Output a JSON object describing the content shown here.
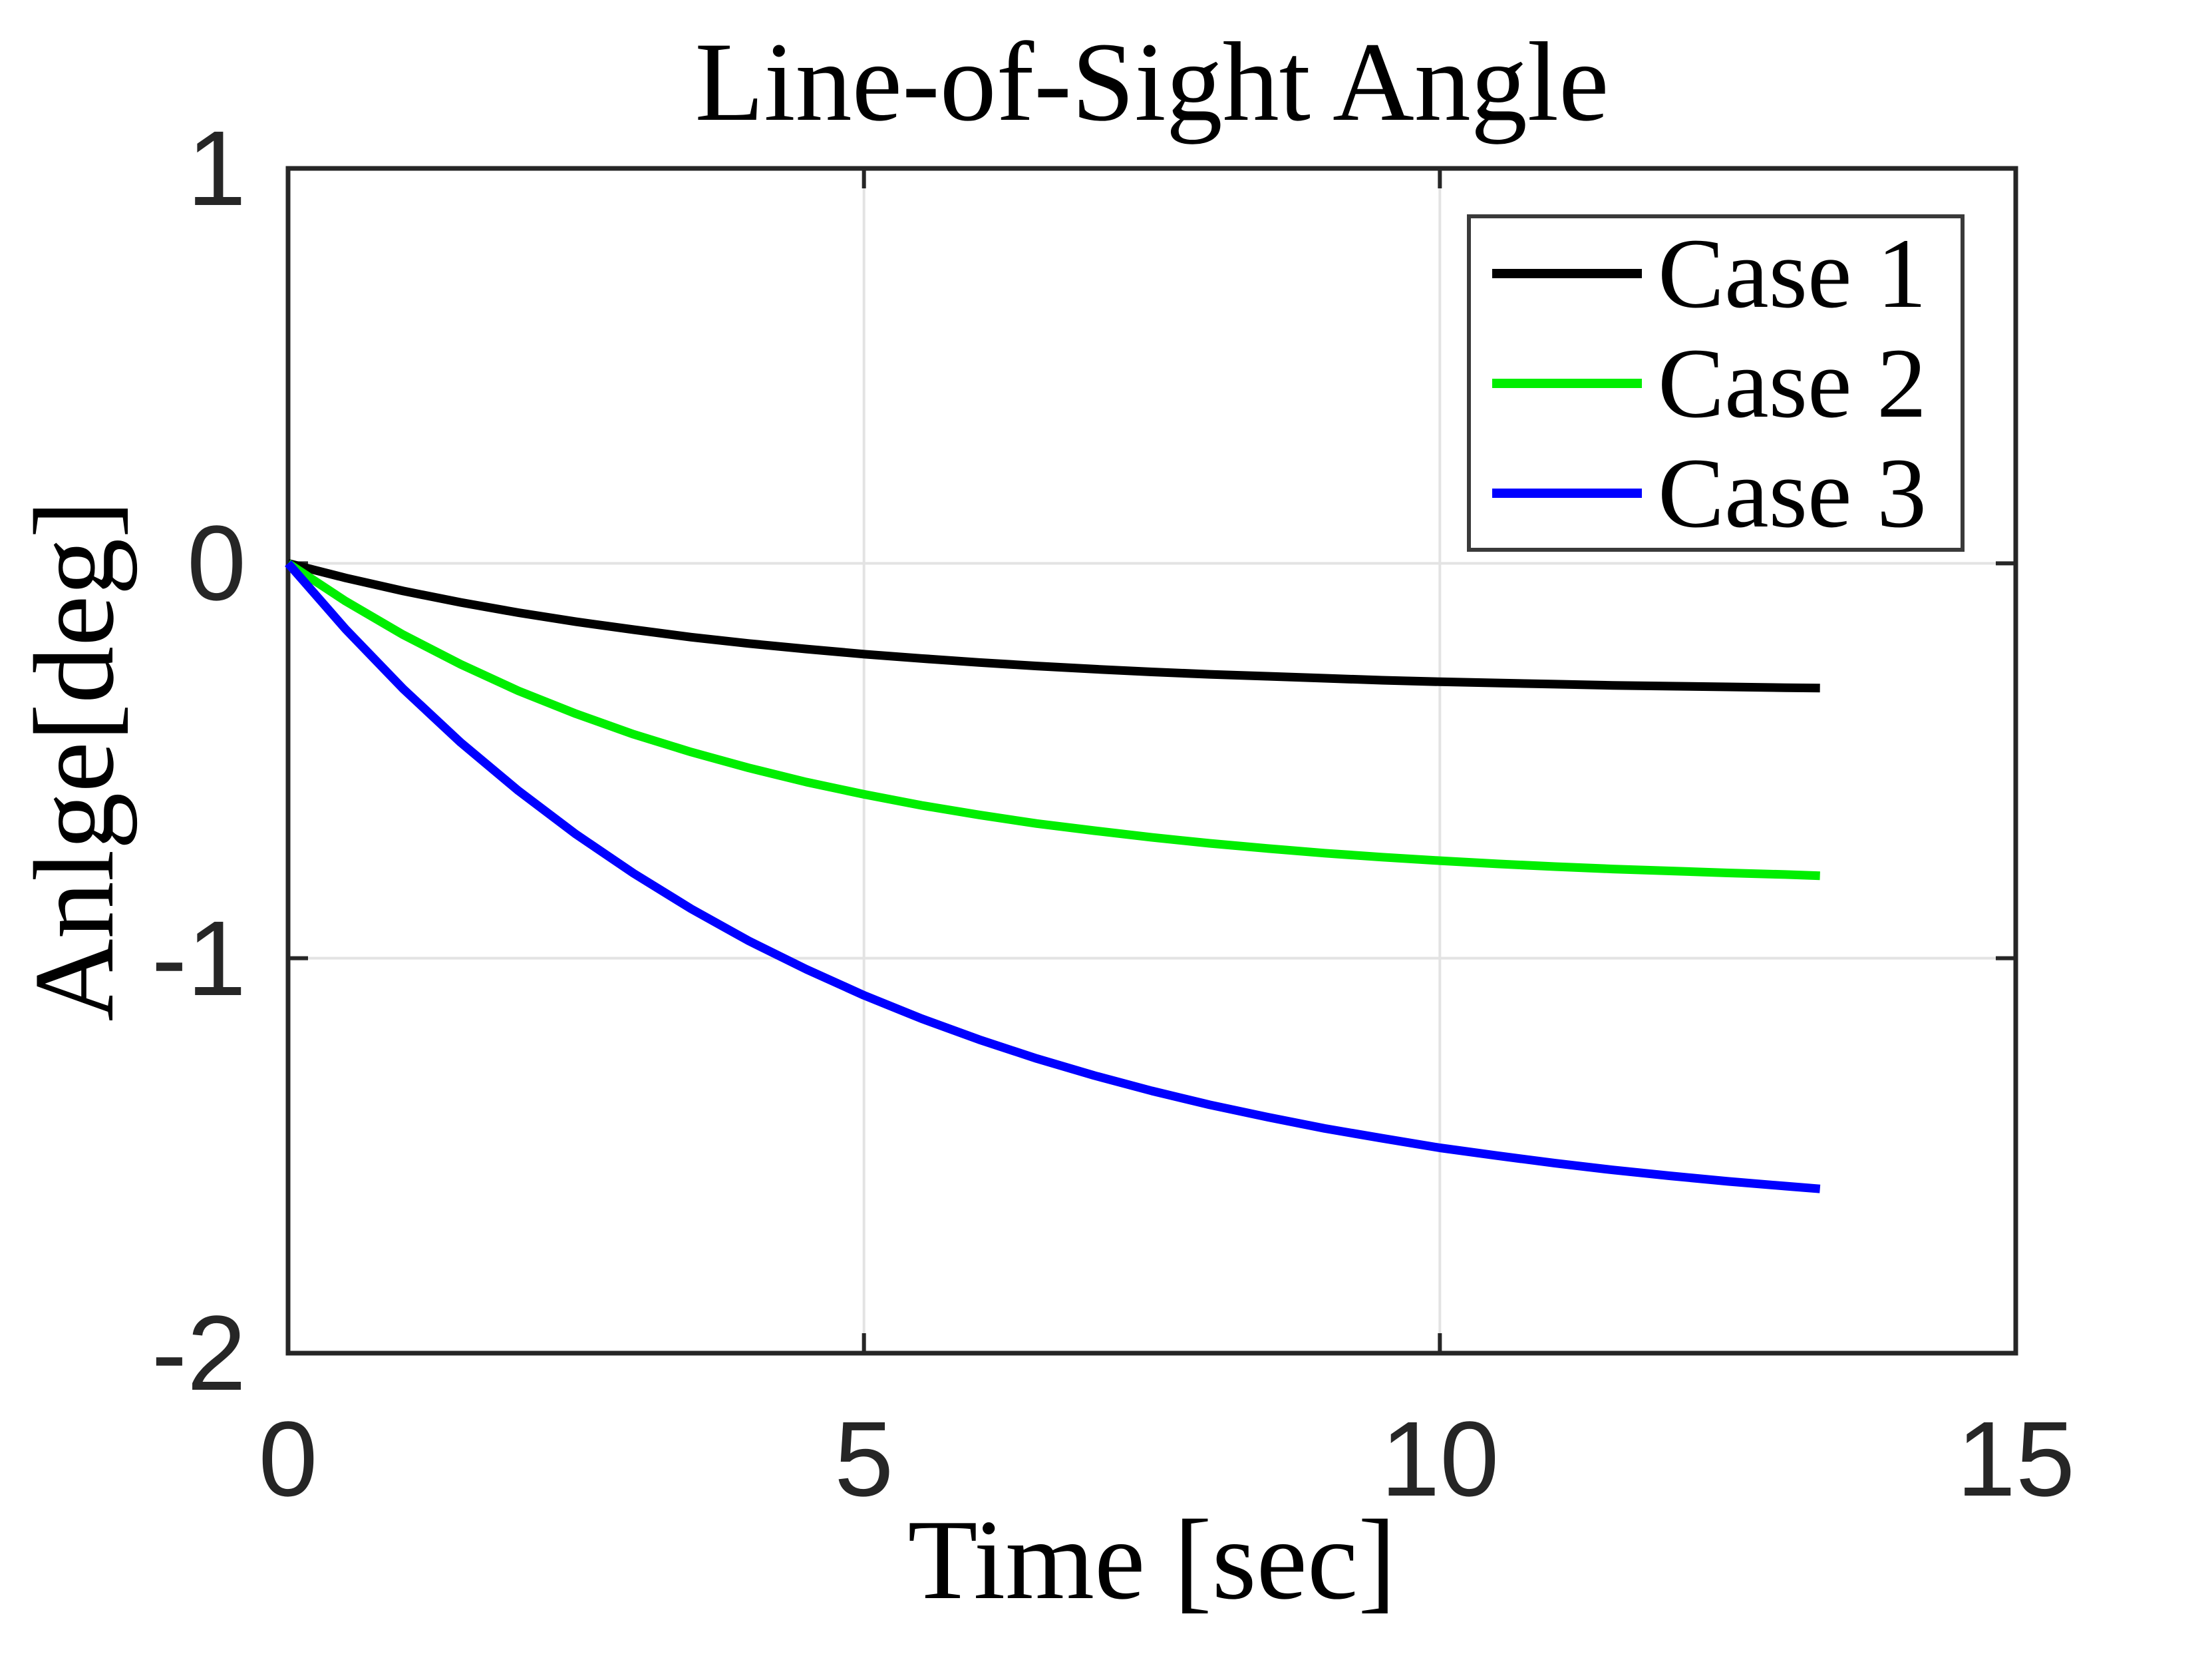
{
  "figure": {
    "title": "Line-of-Sight Angle",
    "xlabel": "Time [sec]",
    "ylabel": "Anlge[deg]"
  },
  "axes": {
    "x": {
      "min": 0,
      "max": 15,
      "ticks": [
        "0",
        "5",
        "10",
        "15"
      ],
      "tick_values": [
        0,
        5,
        10,
        15
      ]
    },
    "y": {
      "min": -2,
      "max": 1,
      "ticks": [
        "1",
        "0",
        "-1",
        "-2"
      ],
      "tick_values": [
        1,
        0,
        -1,
        -2
      ]
    },
    "grid": true
  },
  "colors": {
    "background": "#ffffff",
    "axis": "#262626",
    "grid": "#e3e3e3",
    "tick_label": "#262626",
    "legend_border": "#3a3a3a"
  },
  "chart_data": {
    "type": "line",
    "title": "Line-of-Sight Angle",
    "xlabel": "Time [sec]",
    "ylabel": "Anlge[deg]",
    "xlim": [
      0,
      15
    ],
    "ylim": [
      -2,
      1
    ],
    "grid": true,
    "legend_position": "top-right",
    "series": [
      {
        "name": "Case 1",
        "color": "#000000",
        "points": [
          [
            0,
            0
          ],
          [
            0.5,
            -0.037
          ],
          [
            1,
            -0.07
          ],
          [
            1.5,
            -0.099
          ],
          [
            2,
            -0.125
          ],
          [
            2.5,
            -0.148
          ],
          [
            3,
            -0.168
          ],
          [
            3.5,
            -0.187
          ],
          [
            4,
            -0.203
          ],
          [
            4.5,
            -0.217
          ],
          [
            5,
            -0.23
          ],
          [
            5.5,
            -0.241
          ],
          [
            6,
            -0.251
          ],
          [
            6.5,
            -0.26
          ],
          [
            7,
            -0.268
          ],
          [
            7.5,
            -0.275
          ],
          [
            8,
            -0.281
          ],
          [
            8.5,
            -0.286
          ],
          [
            9,
            -0.291
          ],
          [
            9.5,
            -0.296
          ],
          [
            10,
            -0.3
          ],
          [
            10.5,
            -0.303
          ],
          [
            11,
            -0.306
          ],
          [
            11.5,
            -0.309
          ],
          [
            12,
            -0.311
          ],
          [
            12.5,
            -0.313
          ],
          [
            13,
            -0.315
          ],
          [
            13.3,
            -0.316
          ]
        ]
      },
      {
        "name": "Case 2",
        "color": "#00ee00",
        "points": [
          [
            0,
            0
          ],
          [
            0.5,
            -0.096
          ],
          [
            1,
            -0.181
          ],
          [
            1.5,
            -0.256
          ],
          [
            2,
            -0.323
          ],
          [
            2.5,
            -0.381
          ],
          [
            3,
            -0.433
          ],
          [
            3.5,
            -0.478
          ],
          [
            4,
            -0.518
          ],
          [
            4.5,
            -0.554
          ],
          [
            5,
            -0.585
          ],
          [
            5.5,
            -0.613
          ],
          [
            6,
            -0.637
          ],
          [
            6.5,
            -0.659
          ],
          [
            7,
            -0.677
          ],
          [
            7.5,
            -0.694
          ],
          [
            8,
            -0.709
          ],
          [
            8.5,
            -0.722
          ],
          [
            9,
            -0.734
          ],
          [
            9.5,
            -0.744
          ],
          [
            10,
            -0.753
          ],
          [
            10.5,
            -0.761
          ],
          [
            11,
            -0.768
          ],
          [
            11.5,
            -0.774
          ],
          [
            12,
            -0.779
          ],
          [
            12.5,
            -0.784
          ],
          [
            13,
            -0.788
          ],
          [
            13.3,
            -0.791
          ]
        ]
      },
      {
        "name": "Case 3",
        "color": "#0000ff",
        "points": [
          [
            0,
            0
          ],
          [
            0.5,
            -0.167
          ],
          [
            1,
            -0.318
          ],
          [
            1.5,
            -0.454
          ],
          [
            2,
            -0.576
          ],
          [
            2.5,
            -0.686
          ],
          [
            3,
            -0.785
          ],
          [
            3.5,
            -0.875
          ],
          [
            4,
            -0.956
          ],
          [
            4.5,
            -1.028
          ],
          [
            5,
            -1.094
          ],
          [
            5.5,
            -1.153
          ],
          [
            6,
            -1.206
          ],
          [
            6.5,
            -1.254
          ],
          [
            7,
            -1.297
          ],
          [
            7.5,
            -1.336
          ],
          [
            8,
            -1.371
          ],
          [
            8.5,
            -1.402
          ],
          [
            9,
            -1.431
          ],
          [
            9.5,
            -1.456
          ],
          [
            10,
            -1.48
          ],
          [
            10.5,
            -1.5
          ],
          [
            11,
            -1.519
          ],
          [
            11.5,
            -1.536
          ],
          [
            12,
            -1.551
          ],
          [
            12.5,
            -1.565
          ],
          [
            13,
            -1.577
          ],
          [
            13.3,
            -1.584
          ]
        ]
      }
    ]
  }
}
